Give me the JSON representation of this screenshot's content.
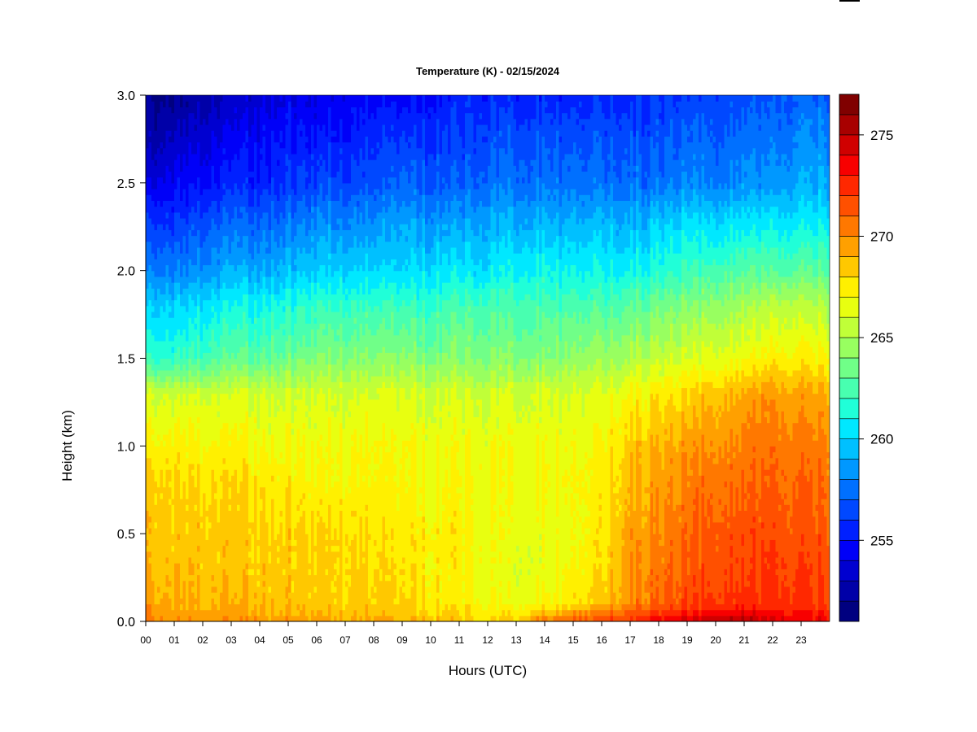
{
  "chart_data": {
    "type": "heatmap",
    "title": "Temperature (K) - 02/15/2024",
    "xlabel": "Hours (UTC)",
    "ylabel": "Height (km)",
    "xlim": [
      0,
      24
    ],
    "ylim": [
      0.0,
      3.0
    ],
    "x_ticks": [
      "00",
      "01",
      "02",
      "03",
      "04",
      "05",
      "06",
      "07",
      "08",
      "09",
      "10",
      "11",
      "12",
      "13",
      "14",
      "15",
      "16",
      "17",
      "18",
      "19",
      "20",
      "21",
      "22",
      "23"
    ],
    "y_ticks": [
      "0.0",
      "0.5",
      "1.0",
      "1.5",
      "2.0",
      "2.5",
      "3.0"
    ],
    "grid": false,
    "colorbar": {
      "placement": "right",
      "range": [
        251,
        277
      ],
      "step": 1,
      "tick_values": [
        255,
        260,
        265,
        270,
        275
      ],
      "tick_labels": [
        "255",
        "260",
        "265",
        "270",
        "275"
      ],
      "colors": [
        "#000080",
        "#0000a8",
        "#0000d0",
        "#0000f8",
        "#0020ff",
        "#0048ff",
        "#0070ff",
        "#0098ff",
        "#00c0ff",
        "#00e8ff",
        "#20ffd8",
        "#48ffb0",
        "#70ff88",
        "#98ff60",
        "#c0ff38",
        "#e8ff10",
        "#fff000",
        "#ffc800",
        "#ffa000",
        "#ff7800",
        "#ff5000",
        "#ff2800",
        "#f80000",
        "#d00000",
        "#a80000",
        "#800000"
      ]
    },
    "hours": [
      0,
      1,
      2,
      3,
      4,
      5,
      6,
      7,
      8,
      9,
      10,
      11,
      12,
      13,
      14,
      15,
      16,
      17,
      18,
      19,
      20,
      21,
      22,
      23,
      24
    ],
    "heights_km": [
      0.0,
      0.1,
      0.3,
      0.5,
      0.8,
      1.0,
      1.3,
      1.5,
      1.8,
      2.0,
      2.3,
      2.5,
      2.8,
      3.0
    ],
    "temperature_profiles_K": [
      [
        270.5,
        269.5,
        269.0,
        268.8,
        268.5,
        267.5,
        266.0,
        262.0,
        260.0,
        258.0,
        256.0,
        254.0,
        252.5,
        252.0
      ],
      [
        270.0,
        269.3,
        268.8,
        268.5,
        268.2,
        267.5,
        266.0,
        262.0,
        260.0,
        258.0,
        256.0,
        254.5,
        253.0,
        252.0
      ],
      [
        269.8,
        269.0,
        268.7,
        268.5,
        268.0,
        267.3,
        266.0,
        262.5,
        260.5,
        258.5,
        256.5,
        255.0,
        253.5,
        252.5
      ],
      [
        269.8,
        268.9,
        268.6,
        268.4,
        267.9,
        267.2,
        266.0,
        263.0,
        261.0,
        259.0,
        257.0,
        255.5,
        254.0,
        253.0
      ],
      [
        269.7,
        268.8,
        268.5,
        268.3,
        267.7,
        267.0,
        266.0,
        263.0,
        261.0,
        259.0,
        257.0,
        255.5,
        254.5,
        253.5
      ],
      [
        269.6,
        268.7,
        268.4,
        268.3,
        267.5,
        267.0,
        266.0,
        263.5,
        261.5,
        259.5,
        257.5,
        256.0,
        255.0,
        254.0
      ],
      [
        269.5,
        268.5,
        268.3,
        268.2,
        267.2,
        267.0,
        266.0,
        264.0,
        262.0,
        260.0,
        258.0,
        256.5,
        255.0,
        254.0
      ],
      [
        269.4,
        268.4,
        268.2,
        268.1,
        267.2,
        267.0,
        266.0,
        264.0,
        262.0,
        260.0,
        258.0,
        256.5,
        255.0,
        254.5
      ],
      [
        269.3,
        268.2,
        268.0,
        267.8,
        267.1,
        267.0,
        266.0,
        264.0,
        262.0,
        260.0,
        258.0,
        256.5,
        255.5,
        254.5
      ],
      [
        269.0,
        268.0,
        267.6,
        267.5,
        267.0,
        266.8,
        266.0,
        264.0,
        262.0,
        260.0,
        258.5,
        257.0,
        255.5,
        254.5
      ],
      [
        268.8,
        267.8,
        267.5,
        267.5,
        267.0,
        266.8,
        266.0,
        264.0,
        262.0,
        260.5,
        258.5,
        257.0,
        256.0,
        255.0
      ],
      [
        268.5,
        267.5,
        267.3,
        267.5,
        267.0,
        266.8,
        266.0,
        264.0,
        262.5,
        260.5,
        258.5,
        257.0,
        256.0,
        255.5
      ],
      [
        268.2,
        267.0,
        266.6,
        266.8,
        267.0,
        266.8,
        266.0,
        264.0,
        262.5,
        260.5,
        259.0,
        257.5,
        256.5,
        255.5
      ],
      [
        268.5,
        266.8,
        266.3,
        266.5,
        266.8,
        266.8,
        266.0,
        264.0,
        262.5,
        261.0,
        259.0,
        257.5,
        256.5,
        255.5
      ],
      [
        270.5,
        267.2,
        266.5,
        266.6,
        266.9,
        266.8,
        266.0,
        264.0,
        262.5,
        261.0,
        259.0,
        257.5,
        256.5,
        255.5
      ],
      [
        271.5,
        267.8,
        267.0,
        266.8,
        267.0,
        266.8,
        266.0,
        264.5,
        262.5,
        261.0,
        259.0,
        257.5,
        256.5,
        255.5
      ],
      [
        272.0,
        268.5,
        267.8,
        267.5,
        267.3,
        267.0,
        266.2,
        264.5,
        262.5,
        261.0,
        259.0,
        257.5,
        256.5,
        255.5
      ],
      [
        272.5,
        270.2,
        269.8,
        269.5,
        269.0,
        268.5,
        267.0,
        265.0,
        263.0,
        261.0,
        259.0,
        257.5,
        256.5,
        255.5
      ],
      [
        273.5,
        271.0,
        270.5,
        270.0,
        269.5,
        269.0,
        267.5,
        265.5,
        263.5,
        261.5,
        259.5,
        257.5,
        256.5,
        256.0
      ],
      [
        274.2,
        271.8,
        271.2,
        270.8,
        270.2,
        269.5,
        268.0,
        266.0,
        264.0,
        262.0,
        260.0,
        258.0,
        257.0,
        256.0
      ],
      [
        275.0,
        272.2,
        271.8,
        271.5,
        270.8,
        270.0,
        268.8,
        266.5,
        264.5,
        262.5,
        260.0,
        258.0,
        257.0,
        256.5
      ],
      [
        275.5,
        272.5,
        272.0,
        271.8,
        271.0,
        270.5,
        269.5,
        267.0,
        265.0,
        263.0,
        260.5,
        258.5,
        257.5,
        256.5
      ],
      [
        274.5,
        272.5,
        272.2,
        271.8,
        271.2,
        270.8,
        269.8,
        267.5,
        265.5,
        263.0,
        260.5,
        258.5,
        257.5,
        257.0
      ],
      [
        274.0,
        272.3,
        272.0,
        271.5,
        271.0,
        270.5,
        269.5,
        267.5,
        265.5,
        263.0,
        260.5,
        259.0,
        258.0,
        257.0
      ],
      [
        273.5,
        272.0,
        271.8,
        271.3,
        270.8,
        270.3,
        269.2,
        267.2,
        265.0,
        263.0,
        260.5,
        259.0,
        258.0,
        257.0
      ]
    ]
  }
}
